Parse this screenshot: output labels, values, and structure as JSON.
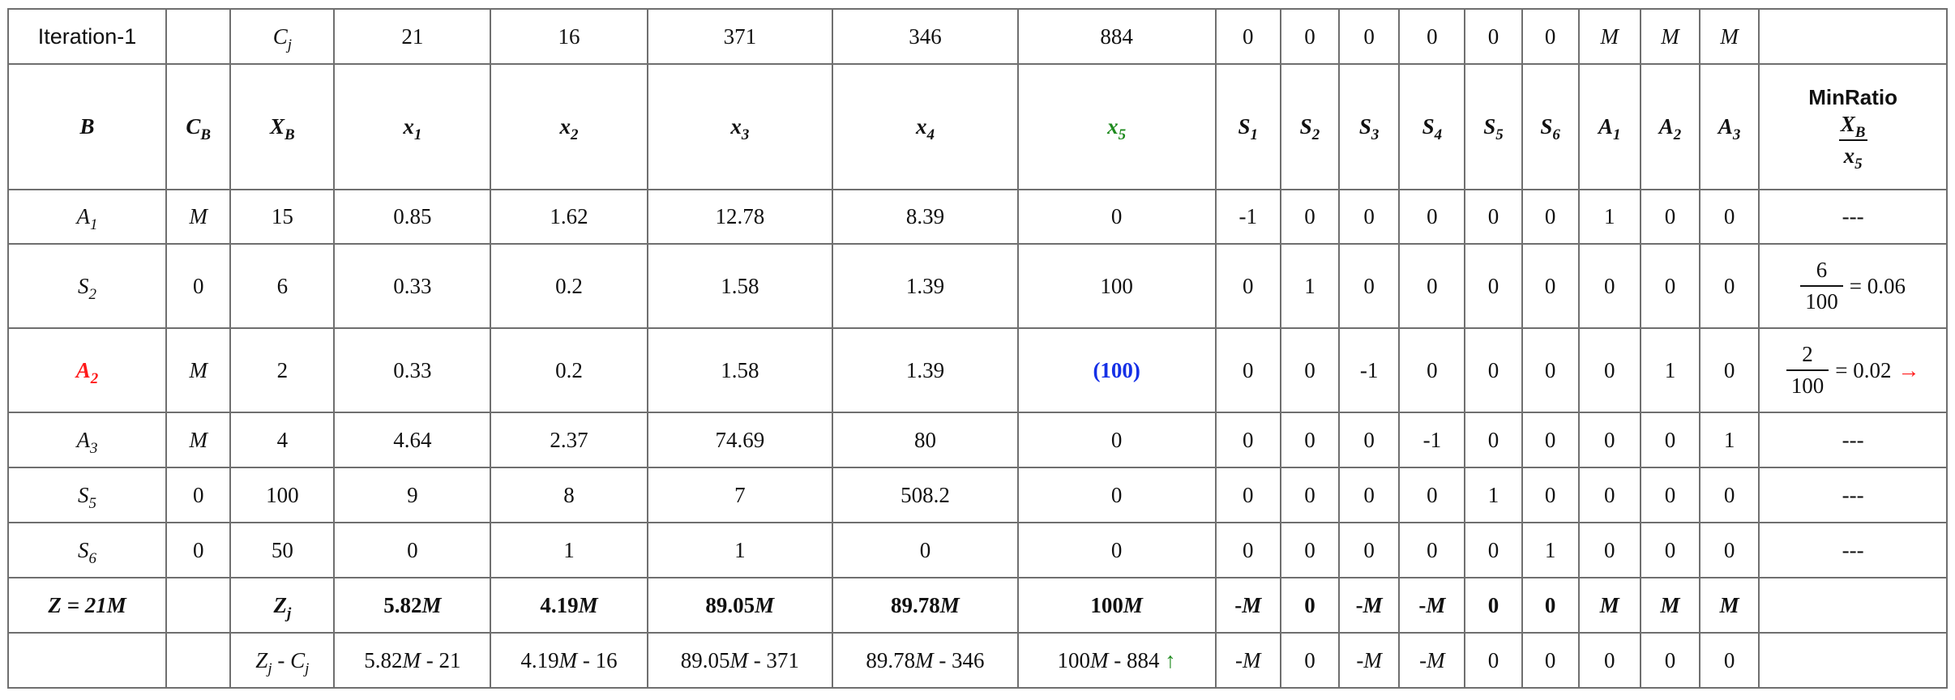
{
  "iteration_label": "Iteration-1",
  "cj_label": "C",
  "cj_label_sub": "j",
  "cj_values": [
    "21",
    "16",
    "371",
    "346",
    "884",
    "0",
    "0",
    "0",
    "0",
    "0",
    "0",
    "M",
    "M",
    "M"
  ],
  "headers": {
    "basis": "B",
    "cb": "C",
    "cb_sub": "B",
    "xb": "X",
    "xb_sub": "B",
    "vars": [
      {
        "base": "x",
        "sub": "1"
      },
      {
        "base": "x",
        "sub": "2"
      },
      {
        "base": "x",
        "sub": "3"
      },
      {
        "base": "x",
        "sub": "4"
      },
      {
        "base": "x",
        "sub": "5"
      },
      {
        "base": "S",
        "sub": "1"
      },
      {
        "base": "S",
        "sub": "2"
      },
      {
        "base": "S",
        "sub": "3"
      },
      {
        "base": "S",
        "sub": "4"
      },
      {
        "base": "S",
        "sub": "5"
      },
      {
        "base": "S",
        "sub": "6"
      },
      {
        "base": "A",
        "sub": "1"
      },
      {
        "base": "A",
        "sub": "2"
      },
      {
        "base": "A",
        "sub": "3"
      }
    ],
    "min_ratio": {
      "label": "MinRatio",
      "num": "X",
      "num_sub": "B",
      "den": "x",
      "den_sub": "5"
    }
  },
  "rows": [
    {
      "basis": "A",
      "basis_sub": "1",
      "cb": "M",
      "xb": "15",
      "values": [
        "0.85",
        "1.62",
        "12.78",
        "8.39",
        "0",
        "-1",
        "0",
        "0",
        "0",
        "0",
        "0",
        "1",
        "0",
        "0"
      ],
      "ratio": "---"
    },
    {
      "basis": "S",
      "basis_sub": "2",
      "cb": "0",
      "xb": "6",
      "values": [
        "0.33",
        "0.2",
        "1.58",
        "1.39",
        "100",
        "0",
        "1",
        "0",
        "0",
        "0",
        "0",
        "0",
        "0",
        "0"
      ],
      "ratio_num": "6",
      "ratio_den": "100",
      "ratio_result": "= 0.06"
    },
    {
      "basis": "A",
      "basis_sub": "2",
      "cb": "M",
      "xb": "2",
      "values": [
        "0.33",
        "0.2",
        "1.58",
        "1.39",
        "(100)",
        "0",
        "0",
        "-1",
        "0",
        "0",
        "0",
        "0",
        "1",
        "0"
      ],
      "ratio_num": "2",
      "ratio_den": "100",
      "ratio_result": "= 0.02",
      "ratio_arrow": "→"
    },
    {
      "basis": "A",
      "basis_sub": "3",
      "cb": "M",
      "xb": "4",
      "values": [
        "4.64",
        "2.37",
        "74.69",
        "80",
        "0",
        "0",
        "0",
        "0",
        "-1",
        "0",
        "0",
        "0",
        "0",
        "1"
      ],
      "ratio": "---"
    },
    {
      "basis": "S",
      "basis_sub": "5",
      "cb": "0",
      "xb": "100",
      "values": [
        "9",
        "8",
        "7",
        "508.2",
        "0",
        "0",
        "0",
        "0",
        "0",
        "1",
        "0",
        "0",
        "0",
        "0"
      ],
      "ratio": "---"
    },
    {
      "basis": "S",
      "basis_sub": "6",
      "cb": "0",
      "xb": "50",
      "values": [
        "0",
        "1",
        "1",
        "0",
        "0",
        "0",
        "0",
        "0",
        "0",
        "0",
        "1",
        "0",
        "0",
        "0"
      ],
      "ratio": "---"
    }
  ],
  "zj_row": {
    "z_prefix": "Z = 21",
    "z_m": "M",
    "label": "Z",
    "label_sub": "j",
    "values": [
      {
        "n": "5.82",
        "m": "M"
      },
      {
        "n": "4.19",
        "m": "M"
      },
      {
        "n": "89.05",
        "m": "M"
      },
      {
        "n": "89.78",
        "m": "M"
      },
      {
        "n": "100",
        "m": "M"
      },
      {
        "n": "-",
        "m": "M"
      },
      {
        "n": "0",
        "m": ""
      },
      {
        "n": "-",
        "m": "M"
      },
      {
        "n": "-",
        "m": "M"
      },
      {
        "n": "0",
        "m": ""
      },
      {
        "n": "0",
        "m": ""
      },
      {
        "n": "",
        "m": "M"
      },
      {
        "n": "",
        "m": "M"
      },
      {
        "n": "",
        "m": "M"
      }
    ]
  },
  "zjcj_row": {
    "label_a": "Z",
    "label_a_sub": "j",
    "label_mid": " - ",
    "label_b": "C",
    "label_b_sub": "j",
    "values": [
      {
        "n": "5.82",
        "m": "M",
        "rest": " - 21"
      },
      {
        "n": "4.19",
        "m": "M",
        "rest": " - 16"
      },
      {
        "n": "89.05",
        "m": "M",
        "rest": " - 371"
      },
      {
        "n": "89.78",
        "m": "M",
        "rest": " - 346"
      },
      {
        "n": "100",
        "m": "M",
        "rest": " - 884 ",
        "arrow": "↑"
      },
      {
        "n": "-",
        "m": "M",
        "rest": ""
      },
      {
        "n": "0",
        "m": "",
        "rest": ""
      },
      {
        "n": "-",
        "m": "M",
        "rest": ""
      },
      {
        "n": "-",
        "m": "M",
        "rest": ""
      },
      {
        "n": "0",
        "m": "",
        "rest": ""
      },
      {
        "n": "0",
        "m": "",
        "rest": ""
      },
      {
        "n": "0",
        "m": "",
        "rest": ""
      },
      {
        "n": "0",
        "m": "",
        "rest": ""
      },
      {
        "n": "0",
        "m": "",
        "rest": ""
      }
    ]
  },
  "colors": {
    "entering": "#1e8a1e",
    "leaving": "#ff1a1a",
    "pivot": "#1530e6",
    "border": "#6f6f6f"
  }
}
